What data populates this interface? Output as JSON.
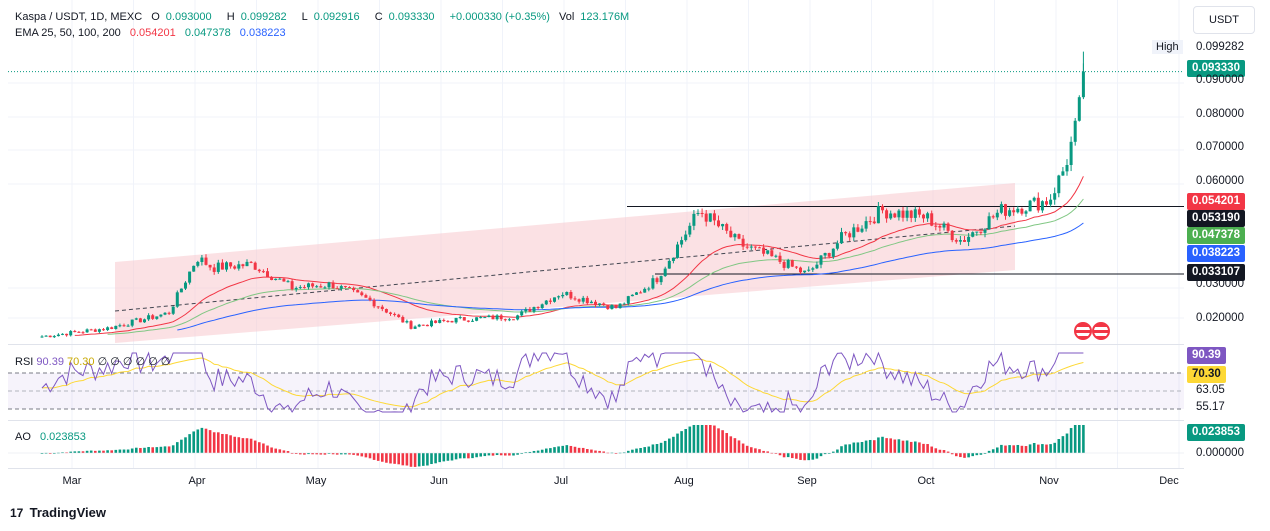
{
  "header": {
    "symbol": "Kaspa / USDT, 1D, MEXC",
    "open_label": "O",
    "open": "0.093000",
    "high_label": "H",
    "high": "0.099282",
    "low_label": "L",
    "low": "0.092916",
    "close_label": "C",
    "close": "0.093330",
    "change": "+0.000330 (+0.35%)",
    "vol_label": "Vol",
    "vol": "123.176M"
  },
  "ema_legend": {
    "label": "EMA 25, 50, 100, 200",
    "v1": "0.054201",
    "v2": "0.047378",
    "v3": "0.038223"
  },
  "currency_button": "USDT",
  "price_scale": {
    "high_label": "High",
    "high_value": "0.099282",
    "last_price": "0.093330",
    "ticks": [
      "0.090000",
      "0.080000",
      "0.070000",
      "0.060000",
      "0.030000",
      "0.020000"
    ],
    "ema25_tag": "0.054201",
    "resistance_tag": "0.053190",
    "ema50_tag": "0.047378",
    "ema100_tag": "0.038223",
    "support_tag": "0.033107"
  },
  "rsi": {
    "label": "RSI",
    "value": "90.39",
    "ma": "70.30",
    "extras": "∅ ∅ ∅ ∅ ∅ ∅",
    "scale_value": "90.39",
    "scale_ma": "70.30",
    "levels": [
      "63.05",
      "55.17"
    ]
  },
  "ao": {
    "label": "AO",
    "value": "0.023853",
    "scale_value": "0.023853",
    "zero_tick": "0.000000"
  },
  "x_axis": {
    "labels": [
      "Mar",
      "Apr",
      "May",
      "Jun",
      "Jul",
      "Aug",
      "Sep",
      "Oct",
      "Nov",
      "Dec"
    ]
  },
  "footer": {
    "brand": "TradingView"
  },
  "colors": {
    "up": "#089981",
    "down": "#f23645",
    "ema25": "#f23645",
    "ema50": "#81c784",
    "ema100": "#2962ff",
    "ema200": "#ff9800",
    "channel": "#f8c9cd",
    "rsi_line": "#7e57c2",
    "rsi_ma": "#fdd835"
  },
  "chart_data": {
    "type": "candlestick",
    "symbol": "KAS/USDT",
    "timeframe": "1D",
    "x_labels": [
      "Mar",
      "Apr",
      "May",
      "Jun",
      "Jul",
      "Aug",
      "Sep",
      "Oct",
      "Nov",
      "Dec"
    ],
    "y_ticks": [
      0.02,
      0.03,
      0.06,
      0.07,
      0.08,
      0.09
    ],
    "ylim": [
      0.0135,
      0.1015
    ],
    "horizontal_levels": {
      "resistance": 0.05319,
      "support": 0.033107
    },
    "ema_last": {
      "ema25": 0.054201,
      "ema50": 0.047378,
      "ema100": 0.038223
    },
    "close_path": [
      [
        "Feb 20",
        0.0145
      ],
      [
        "Mar 10",
        0.017
      ],
      [
        "Mar 25",
        0.0215
      ],
      [
        "Apr 1",
        0.038
      ],
      [
        "Apr 5",
        0.035
      ],
      [
        "Apr 15",
        0.036
      ],
      [
        "Apr 25",
        0.029
      ],
      [
        "May 5",
        0.03
      ],
      [
        "May 15",
        0.025
      ],
      [
        "May 25",
        0.0175
      ],
      [
        "Jun 5",
        0.0195
      ],
      [
        "Jun 20",
        0.0205
      ],
      [
        "Jul 1",
        0.0275
      ],
      [
        "Jul 15",
        0.023
      ],
      [
        "Jul 25",
        0.0315
      ],
      [
        "Aug 5",
        0.052
      ],
      [
        "Aug 15",
        0.042
      ],
      [
        "Aug 25",
        0.037
      ],
      [
        "Sep 1",
        0.033
      ],
      [
        "Sep 10",
        0.044
      ],
      [
        "Sep 20",
        0.052
      ],
      [
        "Oct 1",
        0.05
      ],
      [
        "Oct 10",
        0.043
      ],
      [
        "Oct 20",
        0.052
      ],
      [
        "Nov 1",
        0.055
      ],
      [
        "Nov 5",
        0.065
      ],
      [
        "Nov 8",
        0.078
      ],
      [
        "Nov 10",
        0.0933
      ]
    ]
  }
}
